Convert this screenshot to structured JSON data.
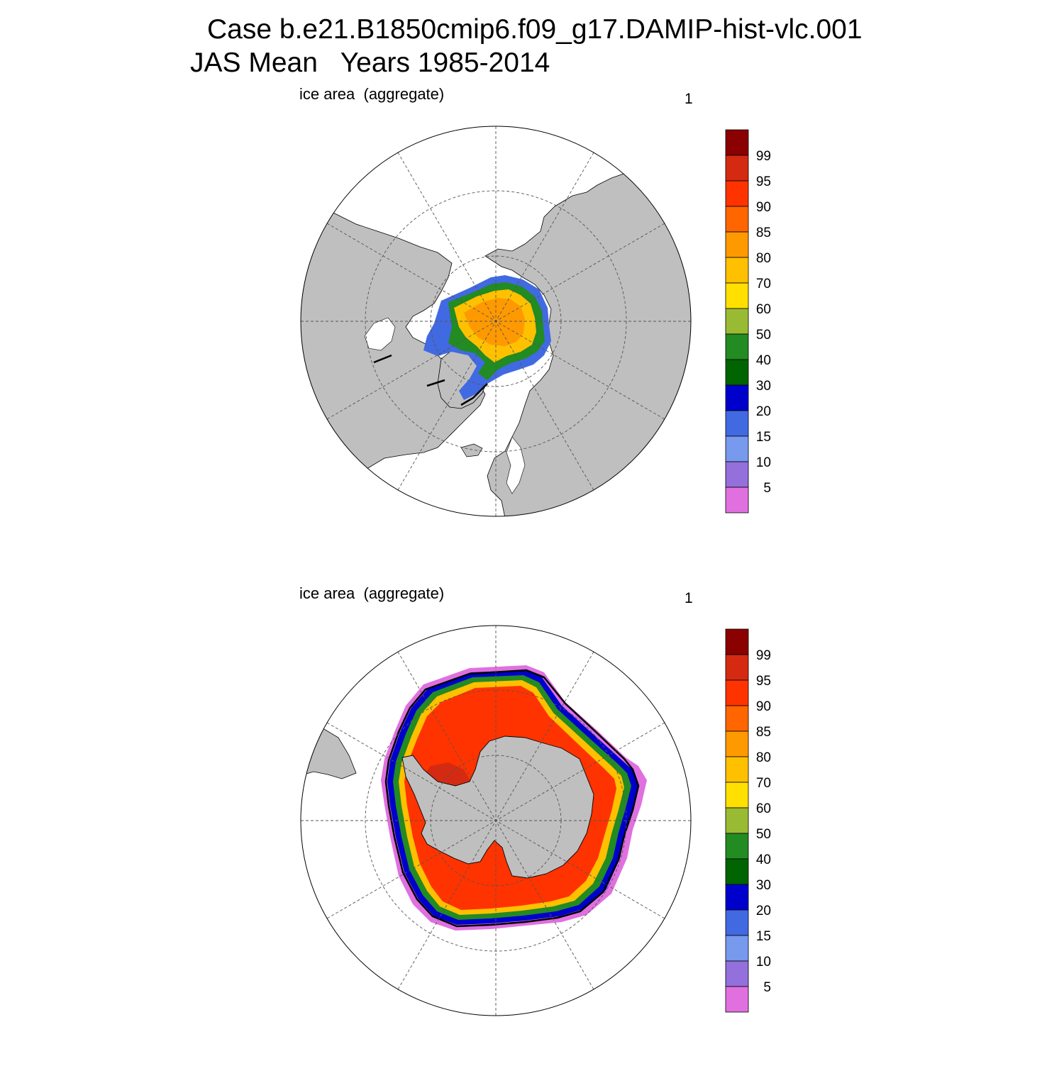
{
  "figure": {
    "title_line1": "Case b.e21.B1850cmip6.f09_g17.DAMIP-hist-vlc.001",
    "title_line2": "JAS Mean   Years 1985-2014"
  },
  "panels": [
    {
      "id": "north",
      "hemisphere": "NH",
      "left_label": "ice area  (aggregate)",
      "right_label": "1"
    },
    {
      "id": "south",
      "hemisphere": "SH",
      "left_label": "ice area  (aggregate)",
      "right_label": "1"
    }
  ],
  "colorbar": {
    "levels": [
      "99",
      "95",
      "90",
      "85",
      "80",
      "70",
      "60",
      "50",
      "40",
      "30",
      "20",
      "15",
      "10",
      "5"
    ],
    "colors": [
      "#8b0000",
      "#d42a12",
      "#ff3300",
      "#ff6600",
      "#ff9900",
      "#ffc000",
      "#ffe000",
      "#99bb33",
      "#228b22",
      "#006400",
      "#0000cd",
      "#4169e1",
      "#7799ee",
      "#9370db",
      "#e070e0"
    ]
  },
  "map_colors": {
    "land": "#bfbfbf",
    "ocean": "#ffffff",
    "grid": "#555555",
    "coast": "#000000"
  }
}
